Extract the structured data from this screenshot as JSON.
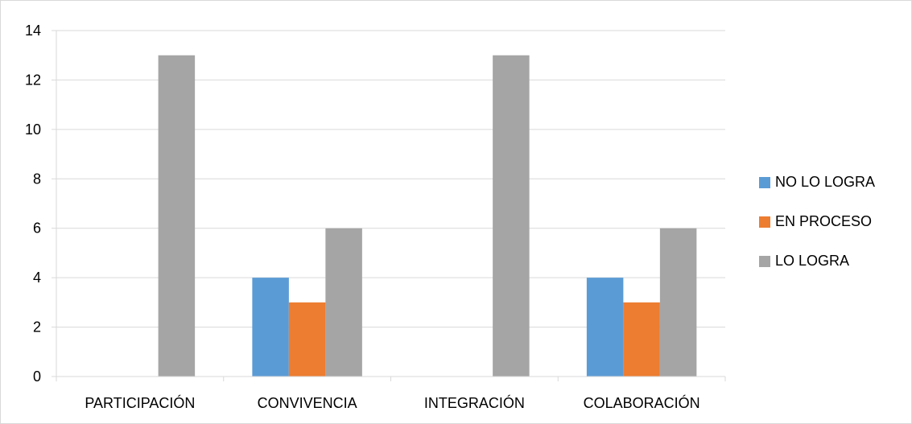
{
  "chart_data": {
    "type": "bar",
    "title": "",
    "xlabel": "",
    "ylabel": "",
    "categories": [
      "PARTICIPACIÓN",
      "CONVIVENCIA",
      "INTEGRACIÓN",
      "COLABORACIÓN"
    ],
    "series": [
      {
        "name": "NO LO LOGRA",
        "color": "#5b9bd5",
        "values": [
          0,
          4,
          0,
          4
        ]
      },
      {
        "name": "EN PROCESO",
        "color": "#ed7d31",
        "values": [
          0,
          3,
          0,
          3
        ]
      },
      {
        "name": "LO LOGRA",
        "color": "#a5a5a5",
        "values": [
          13,
          6,
          13,
          6
        ]
      }
    ],
    "ylim": [
      0,
      14
    ],
    "yticks": [
      0,
      2,
      4,
      6,
      8,
      10,
      12,
      14
    ],
    "grid": true,
    "legend_position": "right"
  }
}
